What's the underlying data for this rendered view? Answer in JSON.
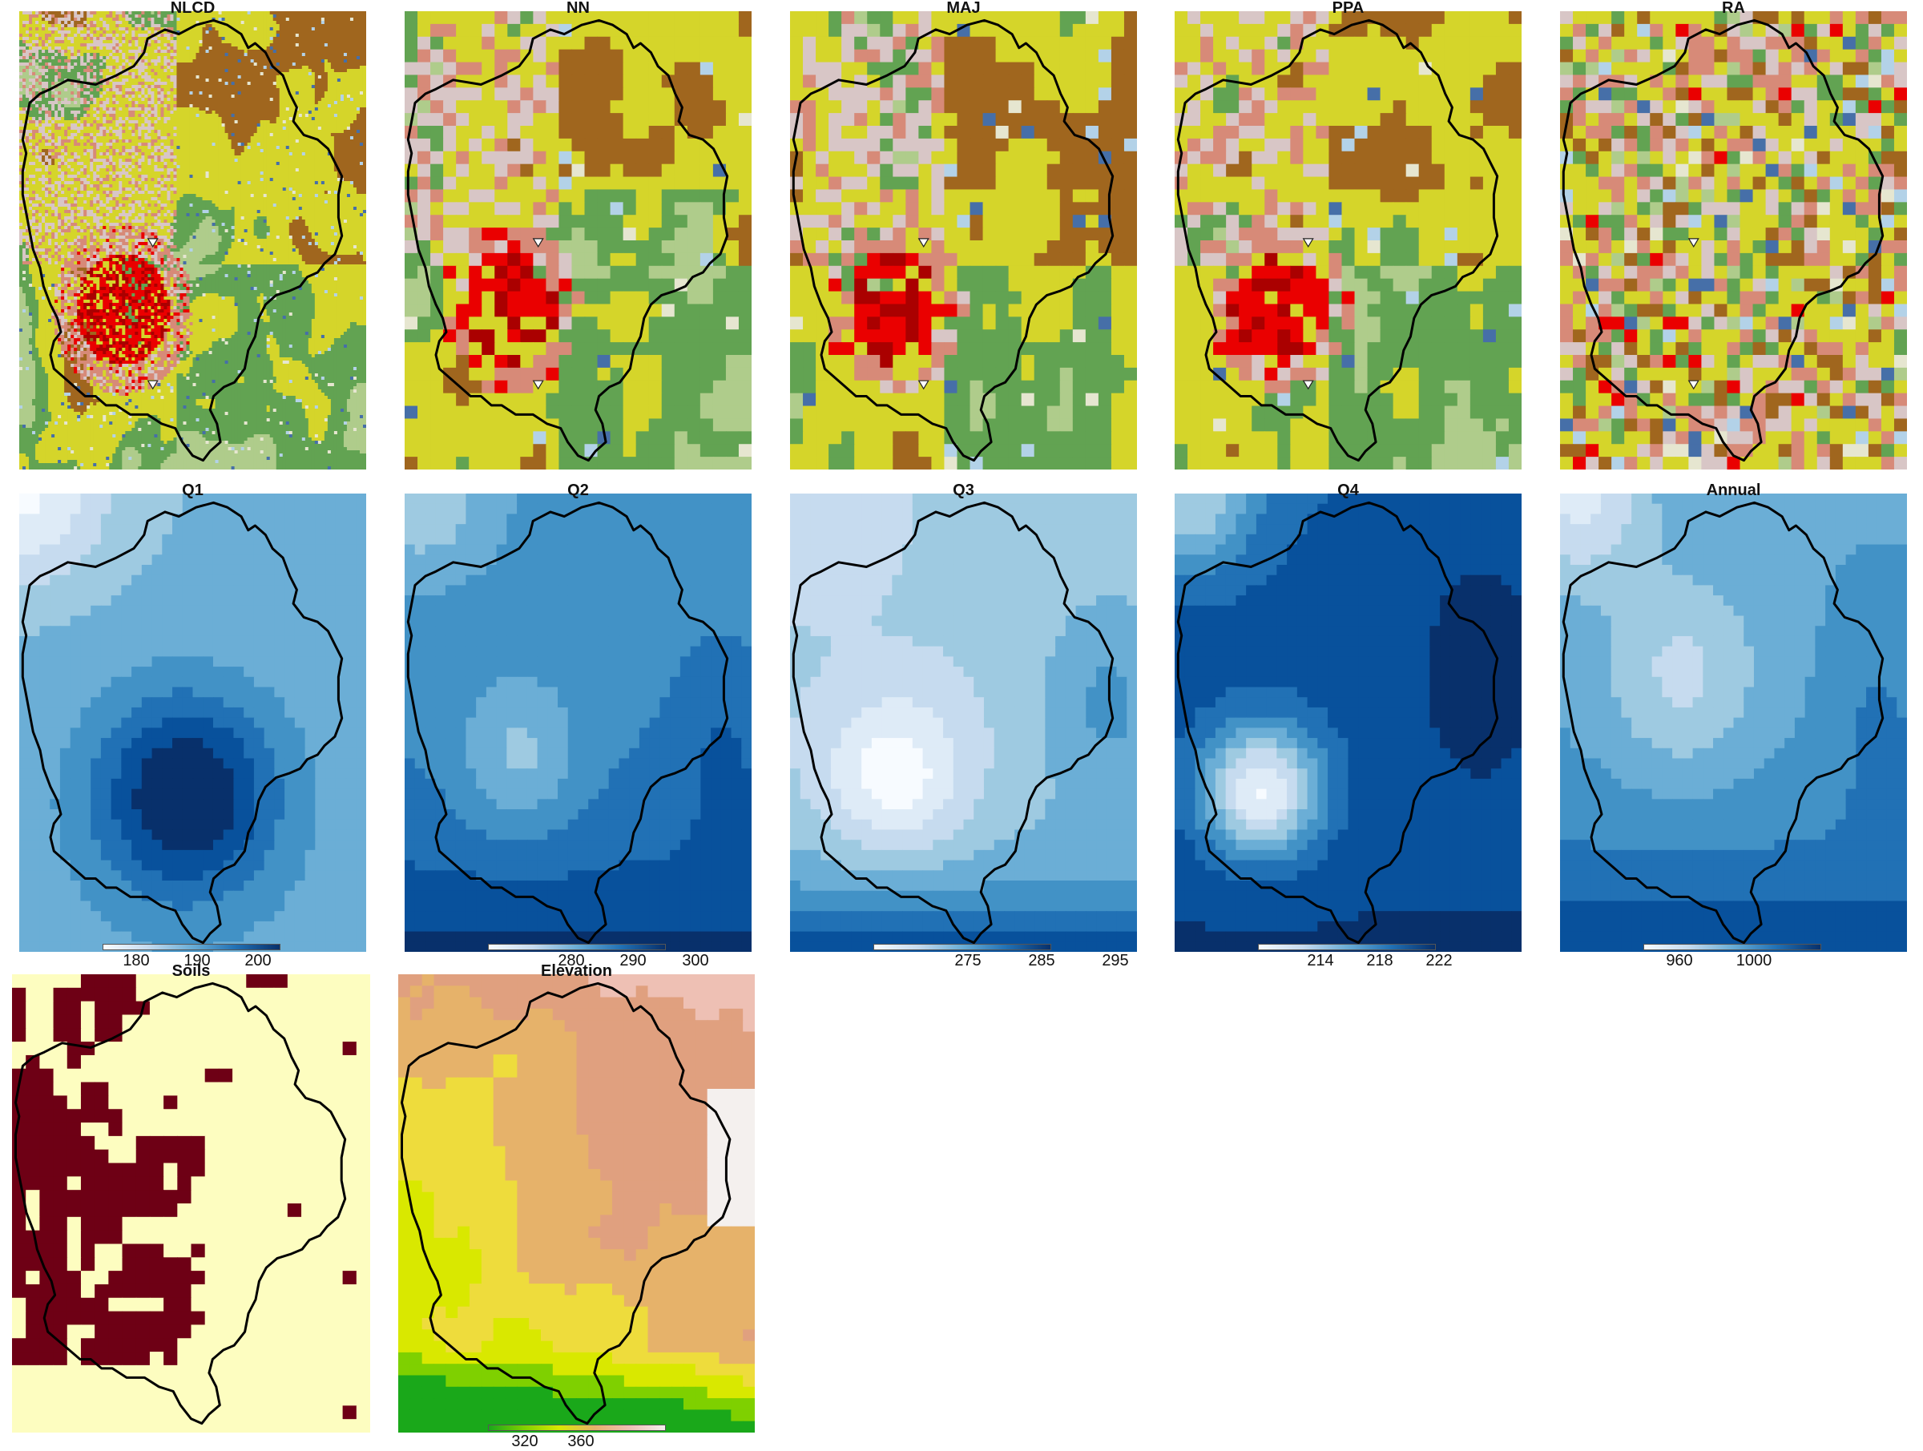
{
  "figure": {
    "panels": [
      {
        "id": "nlcd",
        "title": "NLCD",
        "kind": "landcover-fine",
        "seed": 11
      },
      {
        "id": "nn",
        "title": "NN",
        "kind": "landcover",
        "seed": 23
      },
      {
        "id": "maj",
        "title": "MAJ",
        "kind": "landcover",
        "seed": 37
      },
      {
        "id": "ppa",
        "title": "PPA",
        "kind": "landcover",
        "seed": 41
      },
      {
        "id": "ra",
        "title": "RA",
        "kind": "landcover-random",
        "seed": 59
      },
      {
        "id": "q1",
        "title": "Q1",
        "kind": "blues",
        "colorbar": {
          "ticks": [
            "180",
            "190",
            "200"
          ]
        }
      },
      {
        "id": "q2",
        "title": "Q2",
        "kind": "blues",
        "colorbar": {
          "ticks": [
            "280",
            "290",
            "300"
          ]
        }
      },
      {
        "id": "q3",
        "title": "Q3",
        "kind": "blues",
        "colorbar": {
          "ticks": [
            "275",
            "285",
            "295"
          ]
        }
      },
      {
        "id": "q4",
        "title": "Q4",
        "kind": "blues",
        "colorbar": {
          "ticks": [
            "214",
            "218",
            "222"
          ]
        }
      },
      {
        "id": "annual",
        "title": "Annual",
        "kind": "blues",
        "colorbar": {
          "ticks": [
            "960",
            "1000"
          ]
        }
      },
      {
        "id": "soils",
        "title": "Soils",
        "kind": "binary"
      },
      {
        "id": "elevation",
        "title": "Elevation",
        "kind": "terrain",
        "colorbar": {
          "ticks": [
            "320",
            "360"
          ]
        }
      }
    ]
  },
  "colors": {
    "boundary": "#000000",
    "landcover": [
      "#d8c6c6",
      "#d8c6c6",
      "#d8c6c6",
      "#d78a78",
      "#d78a78",
      "#ea0000",
      "#aa0000",
      "#d5d52a",
      "#d5d52a",
      "#d5d52a",
      "#a0661e",
      "#a0661e",
      "#62a352",
      "#62a352",
      "#afcc8b",
      "#b3d2e8",
      "#466fa8",
      "#e6e6d0"
    ],
    "blues": [
      "#f7fbff",
      "#deebf7",
      "#c6dbef",
      "#9ecae1",
      "#6baed6",
      "#4292c6",
      "#2171b5",
      "#08519c",
      "#08306b"
    ],
    "soils": [
      "#fdfdc0",
      "#6e0015"
    ],
    "terrain": [
      "#1aa81a",
      "#7fd000",
      "#d9e800",
      "#eedc3c",
      "#e6b26a",
      "#e0a07f",
      "#eec0b4",
      "#f4f0ee"
    ]
  }
}
